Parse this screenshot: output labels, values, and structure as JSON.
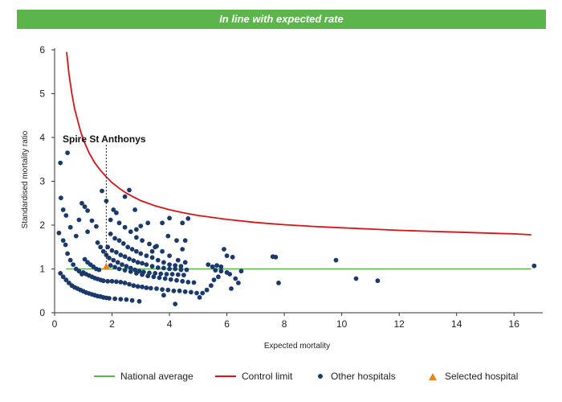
{
  "banner": {
    "text": "In line with expected rate",
    "color": "#5bb54a"
  },
  "chart_data": {
    "type": "scatter",
    "title": "",
    "xlabel": "Expected mortality",
    "ylabel": "Standardised mortality ratio",
    "xlim": [
      0,
      17
    ],
    "ylim": [
      0,
      6
    ],
    "x_ticks": [
      0,
      2,
      4,
      6,
      8,
      10,
      12,
      14,
      16
    ],
    "y_ticks": [
      0,
      1,
      2,
      3,
      4,
      5,
      6
    ],
    "grid": false,
    "legend_position": "bottom",
    "national_average": {
      "name": "National average",
      "y": 1,
      "x_range": [
        0.4,
        16.6
      ],
      "color": "#5bb54a"
    },
    "control_limit": {
      "name": "Control limit",
      "color": "#dd1111",
      "points": [
        [
          0.42,
          5.95
        ],
        [
          0.5,
          5.45
        ],
        [
          0.6,
          5.0
        ],
        [
          0.7,
          4.65
        ],
        [
          0.8,
          4.4
        ],
        [
          0.9,
          4.15
        ],
        [
          1.0,
          3.95
        ],
        [
          1.2,
          3.65
        ],
        [
          1.4,
          3.42
        ],
        [
          1.6,
          3.25
        ],
        [
          1.8,
          3.1
        ],
        [
          2.0,
          2.97
        ],
        [
          2.25,
          2.84
        ],
        [
          2.5,
          2.73
        ],
        [
          2.75,
          2.64
        ],
        [
          3.0,
          2.56
        ],
        [
          3.5,
          2.44
        ],
        [
          4.0,
          2.35
        ],
        [
          4.5,
          2.28
        ],
        [
          5.0,
          2.22
        ],
        [
          6.0,
          2.13
        ],
        [
          7.0,
          2.06
        ],
        [
          8.0,
          2.01
        ],
        [
          9.0,
          1.97
        ],
        [
          10.0,
          1.94
        ],
        [
          11.0,
          1.91
        ],
        [
          12.0,
          1.88
        ],
        [
          13.0,
          1.86
        ],
        [
          14.0,
          1.84
        ],
        [
          15.0,
          1.82
        ],
        [
          16.0,
          1.8
        ],
        [
          16.6,
          1.78
        ]
      ]
    },
    "other_hospitals": {
      "name": "Other hospitals",
      "color": "#1a3a6e",
      "points": [
        [
          0.2,
          3.42
        ],
        [
          0.45,
          3.65
        ],
        [
          0.22,
          2.62
        ],
        [
          0.3,
          2.35
        ],
        [
          0.4,
          2.22
        ],
        [
          0.55,
          1.95
        ],
        [
          0.15,
          1.82
        ],
        [
          0.3,
          1.65
        ],
        [
          0.38,
          1.55
        ],
        [
          0.75,
          1.75
        ],
        [
          0.45,
          1.35
        ],
        [
          0.55,
          1.2
        ],
        [
          0.65,
          1.1
        ],
        [
          0.75,
          1.0
        ],
        [
          0.85,
          0.95
        ],
        [
          0.95,
          0.88
        ],
        [
          0.2,
          0.9
        ],
        [
          0.3,
          0.82
        ],
        [
          0.4,
          0.75
        ],
        [
          0.5,
          0.68
        ],
        [
          0.6,
          0.62
        ],
        [
          0.7,
          0.58
        ],
        [
          0.8,
          0.55
        ],
        [
          0.9,
          0.52
        ],
        [
          1.0,
          0.49
        ],
        [
          1.1,
          0.46
        ],
        [
          1.2,
          0.44
        ],
        [
          1.3,
          0.42
        ],
        [
          1.4,
          0.4
        ],
        [
          1.5,
          0.38
        ],
        [
          1.6,
          0.37
        ],
        [
          1.7,
          0.35
        ],
        [
          1.8,
          0.34
        ],
        [
          1.9,
          0.33
        ],
        [
          2.1,
          0.32
        ],
        [
          2.3,
          0.31
        ],
        [
          2.5,
          0.3
        ],
        [
          2.7,
          0.28
        ],
        [
          2.95,
          0.26
        ],
        [
          4.2,
          0.2
        ],
        [
          1.0,
          0.92
        ],
        [
          1.1,
          0.88
        ],
        [
          1.2,
          0.85
        ],
        [
          1.3,
          0.82
        ],
        [
          1.4,
          0.79
        ],
        [
          1.5,
          0.77
        ],
        [
          1.6,
          0.75
        ],
        [
          1.7,
          0.73
        ],
        [
          1.85,
          0.72
        ],
        [
          2.0,
          0.72
        ],
        [
          2.15,
          0.71
        ],
        [
          2.3,
          0.7
        ],
        [
          2.45,
          0.68
        ],
        [
          2.6,
          0.65
        ],
        [
          2.75,
          0.62
        ],
        [
          2.9,
          0.6
        ],
        [
          3.05,
          0.59
        ],
        [
          3.2,
          0.57
        ],
        [
          3.35,
          0.56
        ],
        [
          3.55,
          0.55
        ],
        [
          3.75,
          0.53
        ],
        [
          3.95,
          0.52
        ],
        [
          4.15,
          0.5
        ],
        [
          4.35,
          0.5
        ],
        [
          4.55,
          0.48
        ],
        [
          4.75,
          0.47
        ],
        [
          4.95,
          0.45
        ],
        [
          5.15,
          0.45
        ],
        [
          5.05,
          0.35
        ],
        [
          3.8,
          0.4
        ],
        [
          1.05,
          1.22
        ],
        [
          1.15,
          1.15
        ],
        [
          1.25,
          1.1
        ],
        [
          1.35,
          1.05
        ],
        [
          1.45,
          1.0
        ],
        [
          1.55,
          0.98
        ],
        [
          1.95,
          1.08
        ],
        [
          2.1,
          1.04
        ],
        [
          2.25,
          1.0
        ],
        [
          2.45,
          0.97
        ],
        [
          2.65,
          0.94
        ],
        [
          2.85,
          0.9
        ],
        [
          3.05,
          0.87
        ],
        [
          3.25,
          0.84
        ],
        [
          3.45,
          0.82
        ],
        [
          3.65,
          0.8
        ],
        [
          3.85,
          0.78
        ],
        [
          4.05,
          0.76
        ],
        [
          4.25,
          0.74
        ],
        [
          4.45,
          0.72
        ],
        [
          4.65,
          0.7
        ],
        [
          4.85,
          0.69
        ],
        [
          5.3,
          0.52
        ],
        [
          5.45,
          0.62
        ],
        [
          1.5,
          1.6
        ],
        [
          1.6,
          1.5
        ],
        [
          1.7,
          1.4
        ],
        [
          1.8,
          1.32
        ],
        [
          1.9,
          1.25
        ],
        [
          2.05,
          1.2
        ],
        [
          2.2,
          1.15
        ],
        [
          2.35,
          1.1
        ],
        [
          2.5,
          1.06
        ],
        [
          2.65,
          1.02
        ],
        [
          2.8,
          0.98
        ],
        [
          2.95,
          0.95
        ],
        [
          3.1,
          0.93
        ],
        [
          3.3,
          0.91
        ],
        [
          3.5,
          0.9
        ],
        [
          3.7,
          0.89
        ],
        [
          3.9,
          0.88
        ],
        [
          4.1,
          0.88
        ],
        [
          4.3,
          0.87
        ],
        [
          4.5,
          0.86
        ],
        [
          1.85,
          1.5
        ],
        [
          2.0,
          1.42
        ],
        [
          2.15,
          1.38
        ],
        [
          2.3,
          1.32
        ],
        [
          2.45,
          1.28
        ],
        [
          2.6,
          1.23
        ],
        [
          2.75,
          1.19
        ],
        [
          2.9,
          1.15
        ],
        [
          3.05,
          1.13
        ],
        [
          3.2,
          1.1
        ],
        [
          3.4,
          1.06
        ],
        [
          3.6,
          1.03
        ],
        [
          3.8,
          1.02
        ],
        [
          4.0,
          1.0
        ],
        [
          4.2,
          1.0
        ],
        [
          4.4,
          0.98
        ],
        [
          4.6,
          0.98
        ],
        [
          1.95,
          1.8
        ],
        [
          2.1,
          1.7
        ],
        [
          2.25,
          1.65
        ],
        [
          2.4,
          1.58
        ],
        [
          2.55,
          1.5
        ],
        [
          2.7,
          1.45
        ],
        [
          2.85,
          1.4
        ],
        [
          3.0,
          1.35
        ],
        [
          3.2,
          1.3
        ],
        [
          3.4,
          1.26
        ],
        [
          3.6,
          1.2
        ],
        [
          3.8,
          1.15
        ],
        [
          4.0,
          1.1
        ],
        [
          4.2,
          1.08
        ],
        [
          4.4,
          1.06
        ],
        [
          2.25,
          2.05
        ],
        [
          2.45,
          1.95
        ],
        [
          2.65,
          1.85
        ],
        [
          2.85,
          1.72
        ],
        [
          3.05,
          1.65
        ],
        [
          3.3,
          1.57
        ],
        [
          3.5,
          1.5
        ],
        [
          3.75,
          1.4
        ],
        [
          4.0,
          1.3
        ],
        [
          4.3,
          1.2
        ],
        [
          4.55,
          1.15
        ],
        [
          0.95,
          2.5
        ],
        [
          1.05,
          2.42
        ],
        [
          1.15,
          2.33
        ],
        [
          1.3,
          2.1
        ],
        [
          1.45,
          1.97
        ],
        [
          0.85,
          2.12
        ],
        [
          1.15,
          1.85
        ],
        [
          1.65,
          2.78
        ],
        [
          1.8,
          2.55
        ],
        [
          1.95,
          2.12
        ],
        [
          2.05,
          2.35
        ],
        [
          2.15,
          2.28
        ],
        [
          2.45,
          2.65
        ],
        [
          2.6,
          2.8
        ],
        [
          2.8,
          2.35
        ],
        [
          2.85,
          1.9
        ],
        [
          3.0,
          1.98
        ],
        [
          3.25,
          2.05
        ],
        [
          3.75,
          2.05
        ],
        [
          4.0,
          2.16
        ],
        [
          3.95,
          1.75
        ],
        [
          4.25,
          1.65
        ],
        [
          4.45,
          2.05
        ],
        [
          4.55,
          1.65
        ],
        [
          4.65,
          2.15
        ],
        [
          3.4,
          1.4
        ],
        [
          3.55,
          1.52
        ],
        [
          4.45,
          1.45
        ],
        [
          5.35,
          1.1
        ],
        [
          5.5,
          1.05
        ],
        [
          5.65,
          1.08
        ],
        [
          5.8,
          1.05
        ],
        [
          5.6,
          0.97
        ],
        [
          5.8,
          0.95
        ],
        [
          6.0,
          0.92
        ],
        [
          5.7,
          0.82
        ],
        [
          6.1,
          0.88
        ],
        [
          6.3,
          0.78
        ],
        [
          6.4,
          0.68
        ],
        [
          6.5,
          0.95
        ],
        [
          5.9,
          1.45
        ],
        [
          6.0,
          1.3
        ],
        [
          6.2,
          1.27
        ],
        [
          6.15,
          0.55
        ],
        [
          5.55,
          0.75
        ],
        [
          7.6,
          1.28
        ],
        [
          7.7,
          1.27
        ],
        [
          7.8,
          0.68
        ],
        [
          9.8,
          1.2
        ],
        [
          10.5,
          0.78
        ],
        [
          11.25,
          0.73
        ],
        [
          16.7,
          1.07
        ]
      ]
    },
    "selected_hospital": {
      "name": "Selected hospital",
      "label": "Spire St Anthonys",
      "x": 1.8,
      "y": 1.05,
      "color": "#e8831a"
    }
  },
  "legend": [
    {
      "label": "National average",
      "kind": "line",
      "color": "#5bb54a"
    },
    {
      "label": "Control limit",
      "kind": "line",
      "color": "#dd1111"
    },
    {
      "label": "Other hospitals",
      "kind": "dot",
      "color": "#1a3a6e"
    },
    {
      "label": "Selected hospital",
      "kind": "triangle",
      "color": "#e8831a"
    }
  ]
}
